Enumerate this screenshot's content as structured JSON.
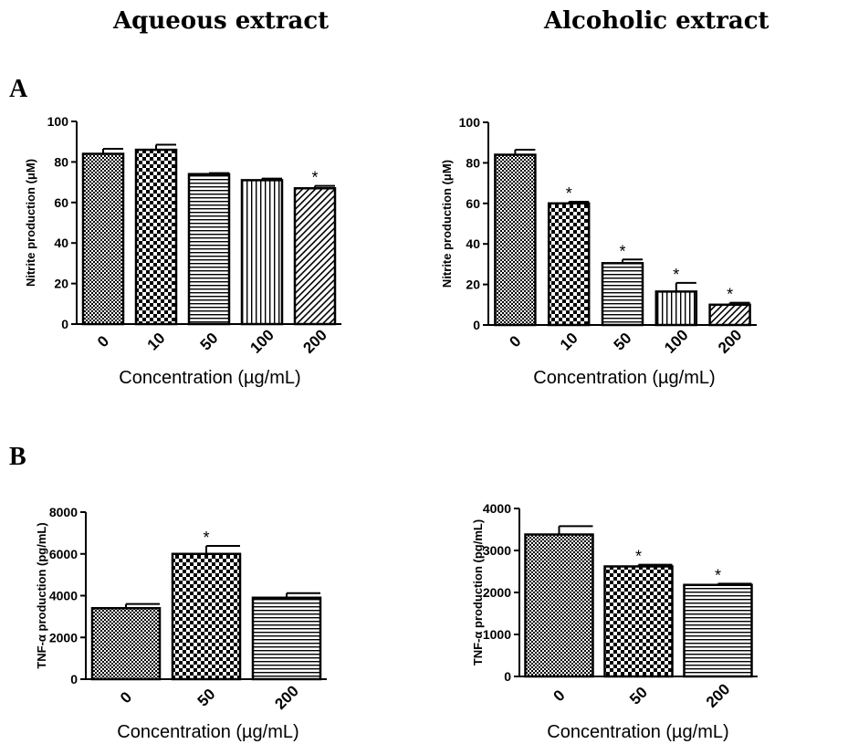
{
  "headers": {
    "left": "Aqueous extract",
    "right": "Alcoholic extract"
  },
  "panels": {
    "a": "A",
    "b": "B"
  },
  "chart_data": [
    {
      "type": "bar",
      "panel": "A",
      "column": "Aqueous extract",
      "categories": [
        "0",
        "10",
        "50",
        "100",
        "200"
      ],
      "values": [
        84,
        86,
        74,
        71,
        67
      ],
      "errors": [
        2.5,
        2.5,
        0.5,
        0.8,
        1.2
      ],
      "significant": [
        false,
        false,
        false,
        false,
        true
      ],
      "patterns": [
        "pat-checker-fine",
        "pat-checker-coarse",
        "pat-hlines",
        "pat-vlines",
        "pat-diag"
      ],
      "ylabel": "Nitrite production (μM)",
      "xlabel": "Concentration (µg/mL)",
      "ylim": [
        0,
        100
      ],
      "yticks": [
        0,
        20,
        40,
        60,
        80,
        100
      ],
      "significance_marker": "*"
    },
    {
      "type": "bar",
      "panel": "A",
      "column": "Alcoholic extract",
      "categories": [
        "0",
        "10",
        "50",
        "100",
        "200"
      ],
      "values": [
        84,
        60,
        30.5,
        16.5,
        10
      ],
      "errors": [
        2.5,
        0.8,
        1.8,
        4.3,
        1.0
      ],
      "significant": [
        false,
        true,
        true,
        true,
        true
      ],
      "patterns": [
        "pat-checker-fine",
        "pat-checker-coarse",
        "pat-hlines",
        "pat-vlines",
        "pat-diag"
      ],
      "ylabel": "Nitrite production (μM)",
      "xlabel": "Concentration (µg/mL)",
      "ylim": [
        0,
        100
      ],
      "yticks": [
        0,
        20,
        40,
        60,
        80,
        100
      ],
      "significance_marker": "*"
    },
    {
      "type": "bar",
      "panel": "B",
      "column": "Aqueous extract",
      "categories": [
        "0",
        "50",
        "200"
      ],
      "values": [
        3400,
        6000,
        3900
      ],
      "errors": [
        200,
        380,
        220
      ],
      "significant": [
        false,
        true,
        false
      ],
      "patterns": [
        "pat-checker-fine",
        "pat-checker-coarse",
        "pat-hlines"
      ],
      "ylabel": "TNF-α production (pg/mL)",
      "xlabel": "Concentration (µg/mL)",
      "ylim": [
        0,
        8000
      ],
      "yticks": [
        0,
        2000,
        4000,
        6000,
        8000
      ],
      "significance_marker": "*"
    },
    {
      "type": "bar",
      "panel": "B",
      "column": "Alcoholic extract",
      "categories": [
        "0",
        "50",
        "200"
      ],
      "values": [
        3380,
        2620,
        2180
      ],
      "errors": [
        200,
        40,
        30
      ],
      "significant": [
        false,
        true,
        true
      ],
      "patterns": [
        "pat-checker-fine",
        "pat-checker-coarse",
        "pat-hlines"
      ],
      "ylabel": "TNF-α production (pg/mL)",
      "xlabel": "Concentration (µg/mL)",
      "ylim": [
        0,
        4000
      ],
      "yticks": [
        0,
        1000,
        2000,
        3000,
        4000
      ],
      "significance_marker": "*"
    }
  ]
}
